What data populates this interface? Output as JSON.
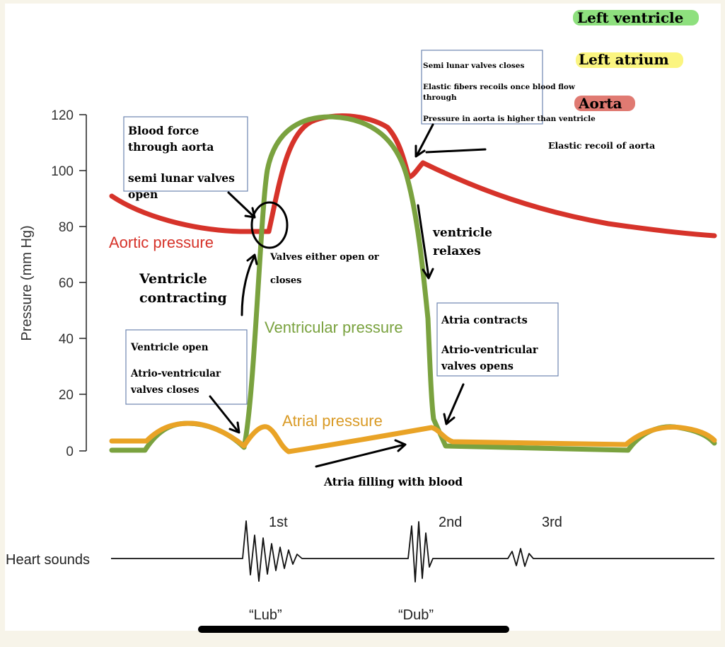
{
  "legend": {
    "left_ventricle": "Left ventricle",
    "left_atrium": "Left atrium",
    "aorta": "Aorta",
    "colors": {
      "left_ventricle": "#8ee07e",
      "left_atrium": "#fbf580",
      "aorta": "#e07a72"
    }
  },
  "axis": {
    "ylabel": "Pressure (mm Hg)",
    "ticks": [
      "120",
      "100",
      "80",
      "60",
      "40",
      "20",
      "0"
    ],
    "ylim": [
      0,
      120
    ]
  },
  "curves": {
    "aortic_label": "Aortic pressure",
    "ventricular_label": "Ventricular pressure",
    "atrial_label": "Atrial pressure",
    "colors": {
      "aortic": "#d6332a",
      "ventricular": "#7aa23f",
      "atrial": "#e9a326"
    }
  },
  "notes": {
    "blood_force": [
      "Blood force",
      "through aorta",
      "",
      "semi lunar valves",
      "open"
    ],
    "semilunar_close": [
      "Semi lunar valves closes",
      "",
      "Elastic fibers recoils once blood flow",
      "through",
      "",
      "Pressure in aorta is higher than ventricle"
    ],
    "elastic_recoil": "Elastic recoil of aorta",
    "ventricle_relaxes": [
      "ventricle",
      "relaxes"
    ],
    "valves_either": [
      "Valves either open or",
      "closes"
    ],
    "ventricle_contracting": [
      "Ventricle",
      "contracting"
    ],
    "ventricle_open": [
      "Ventricle open",
      "",
      "Atrio-ventricular",
      "valves closes"
    ],
    "atria_contracts": [
      "Atria contracts",
      "",
      "Atrio-ventricular",
      "valves opens"
    ],
    "atria_filling": "Atria filling with blood"
  },
  "heart_sounds": {
    "label": "Heart sounds",
    "first": "1st",
    "second": "2nd",
    "third": "3rd",
    "lub": "“Lub”",
    "dub": "“Dub”"
  }
}
